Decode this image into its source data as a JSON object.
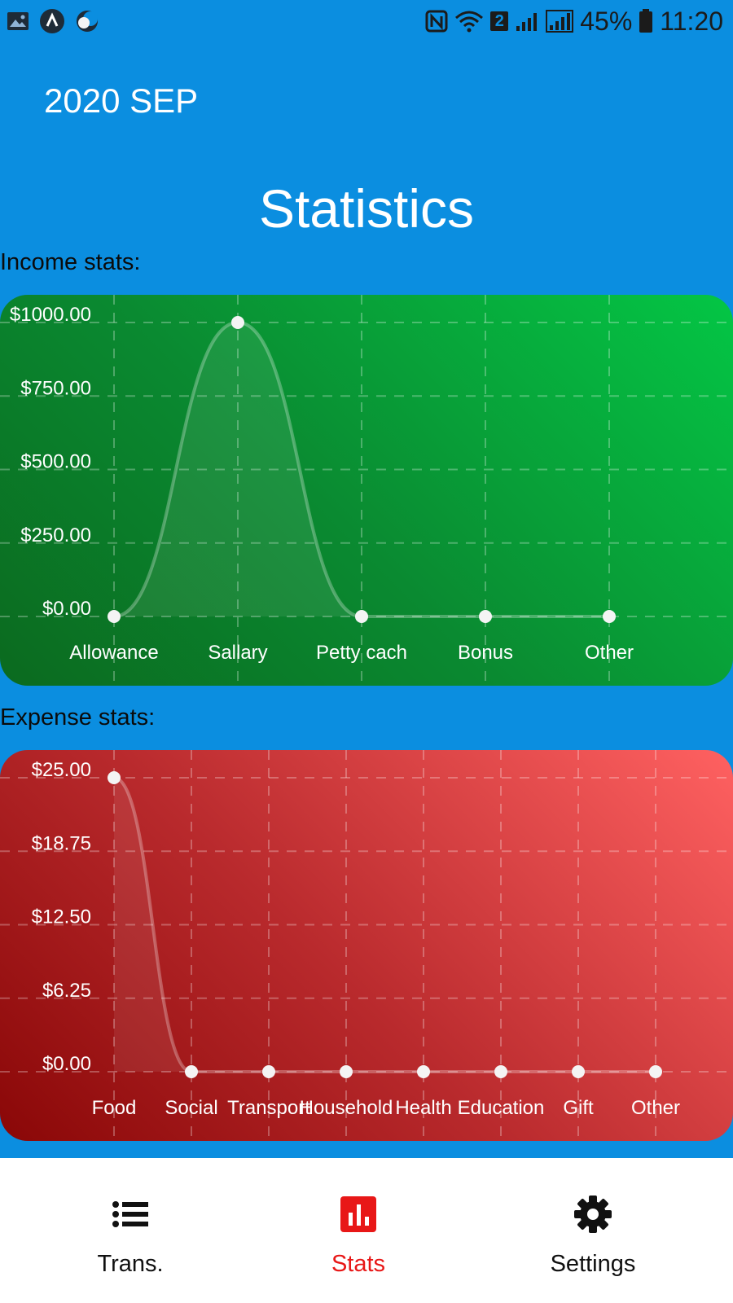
{
  "status_bar": {
    "battery": "45%",
    "time": "11:20",
    "sim_badge": "2",
    "left_icons": [
      "gallery-icon",
      "app-a-icon",
      "night-mode-icon"
    ],
    "right_icons": [
      "nfc-icon",
      "wifi-icon",
      "signal-icon",
      "signal-icon",
      "battery-icon"
    ]
  },
  "header": {
    "month": "2020 SEP",
    "title": "Statistics"
  },
  "income": {
    "label": "Income stats:"
  },
  "expense": {
    "label": "Expense stats:"
  },
  "chart_data": [
    {
      "type": "line",
      "title": "Income stats:",
      "categories": [
        "Allowance",
        "Sallary",
        "Petty cach",
        "Bonus",
        "Other"
      ],
      "values": [
        0,
        1000,
        0,
        0,
        0
      ],
      "yticks": [
        "$0.00",
        "$250.00",
        "$500.00",
        "$750.00",
        "$1000.00"
      ],
      "ylim": [
        0,
        1000
      ],
      "grid": true,
      "colors": {
        "start": "#0b6a1f",
        "end": "#04c645"
      }
    },
    {
      "type": "line",
      "title": "Expense stats:",
      "categories": [
        "Food",
        "Social",
        "Transport",
        "Household",
        "Health",
        "Education",
        "Gift",
        "Other"
      ],
      "values": [
        25,
        0,
        0,
        0,
        0,
        0,
        0,
        0
      ],
      "yticks": [
        "$0.00",
        "$6.25",
        "$12.50",
        "$18.75",
        "$25.00"
      ],
      "ylim": [
        0,
        25
      ],
      "grid": true,
      "colors": {
        "start": "#8a0707",
        "end": "#ff6161"
      }
    }
  ],
  "nav": {
    "items": [
      {
        "label": "Trans.",
        "icon": "list-icon",
        "active": false
      },
      {
        "label": "Stats",
        "icon": "bar-chart-icon",
        "active": true
      },
      {
        "label": "Settings",
        "icon": "gear-icon",
        "active": false
      }
    ],
    "active_color": "#e81717"
  }
}
